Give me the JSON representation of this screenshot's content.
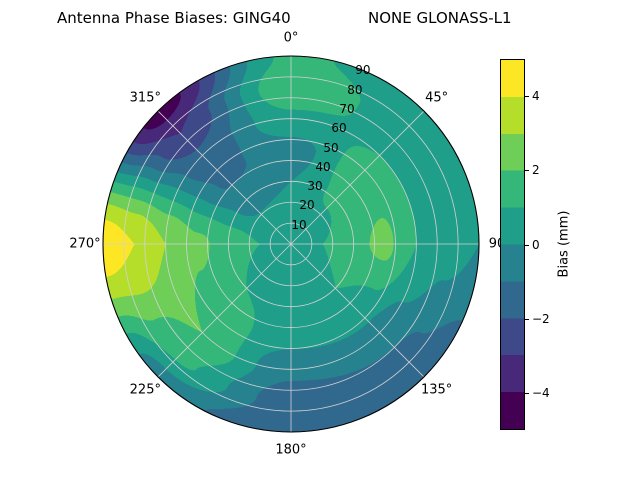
{
  "header": {
    "left": "Antenna Phase Biases: GING40",
    "right": "NONE GLONASS-L1"
  },
  "chart_data": {
    "type": "heatmap",
    "projection": "polar",
    "title": "Antenna Phase Biases: GING40   NONE GLONASS-L1",
    "grid": true,
    "angular_ticks": [
      {
        "label": "0°",
        "angle": 0
      },
      {
        "label": "45°",
        "angle": 45
      },
      {
        "label": "90",
        "angle": 90
      },
      {
        "label": "135°",
        "angle": 135
      },
      {
        "label": "180°",
        "angle": 180
      },
      {
        "label": "225°",
        "angle": 225
      },
      {
        "label": "270°",
        "angle": 270
      },
      {
        "label": "315°",
        "angle": 315
      }
    ],
    "radial_ticks": [
      {
        "label": "10",
        "zenith": 10
      },
      {
        "label": "20",
        "zenith": 20
      },
      {
        "label": "30",
        "zenith": 30
      },
      {
        "label": "40",
        "zenith": 40
      },
      {
        "label": "50",
        "zenith": 50
      },
      {
        "label": "60",
        "zenith": 60
      },
      {
        "label": "70",
        "zenith": 70
      },
      {
        "label": "80",
        "zenith": 80
      },
      {
        "label": "90",
        "zenith": 90
      }
    ],
    "radial_tick_azimuth_deg": 22.5,
    "azimuth_deg": [
      0,
      45,
      90,
      135,
      180,
      225,
      270,
      315,
      360
    ],
    "zenith_deg": [
      0,
      15,
      30,
      45,
      60,
      75,
      90
    ],
    "bias_mm": [
      [
        0.5,
        0.5,
        0.5,
        0.5,
        0.5,
        0.5,
        0.5,
        0.5,
        0.5
      ],
      [
        0.3,
        0.6,
        1.0,
        0.8,
        0.5,
        0.6,
        1.0,
        0.3,
        0.3
      ],
      [
        0.0,
        1.2,
        1.8,
        1.0,
        0.6,
        1.0,
        1.6,
        -0.5,
        0.0
      ],
      [
        -0.5,
        1.5,
        2.2,
        0.5,
        0.3,
        1.5,
        2.2,
        -1.2,
        -0.5
      ],
      [
        0.8,
        1.0,
        1.0,
        -0.5,
        -0.8,
        2.0,
        3.0,
        -1.8,
        0.8
      ],
      [
        1.8,
        0.5,
        0.3,
        -1.2,
        -1.5,
        1.2,
        4.0,
        -3.0,
        1.8
      ],
      [
        1.2,
        0.2,
        0.0,
        -1.8,
        -2.0,
        -0.5,
        4.6,
        -4.5,
        1.2
      ]
    ],
    "levels_mm": [
      -5,
      -4,
      -3,
      -2,
      -1,
      0,
      1,
      2,
      3,
      4,
      5
    ],
    "colormap": "viridis",
    "colormap_colors": [
      "#440154",
      "#482878",
      "#3e4989",
      "#31688e",
      "#26828e",
      "#1f9e89",
      "#35b779",
      "#6ece58",
      "#b5de2b",
      "#fde725"
    ],
    "grid_color": "#d2d2d2",
    "colorbar": {
      "label": "Bias (mm)",
      "min": -5,
      "max": 5,
      "ticks": [
        {
          "label": "4",
          "value": 4
        },
        {
          "label": "2",
          "value": 2
        },
        {
          "label": "0",
          "value": 0
        },
        {
          "label": "−2",
          "value": -2
        },
        {
          "label": "−4",
          "value": -4
        }
      ]
    }
  }
}
